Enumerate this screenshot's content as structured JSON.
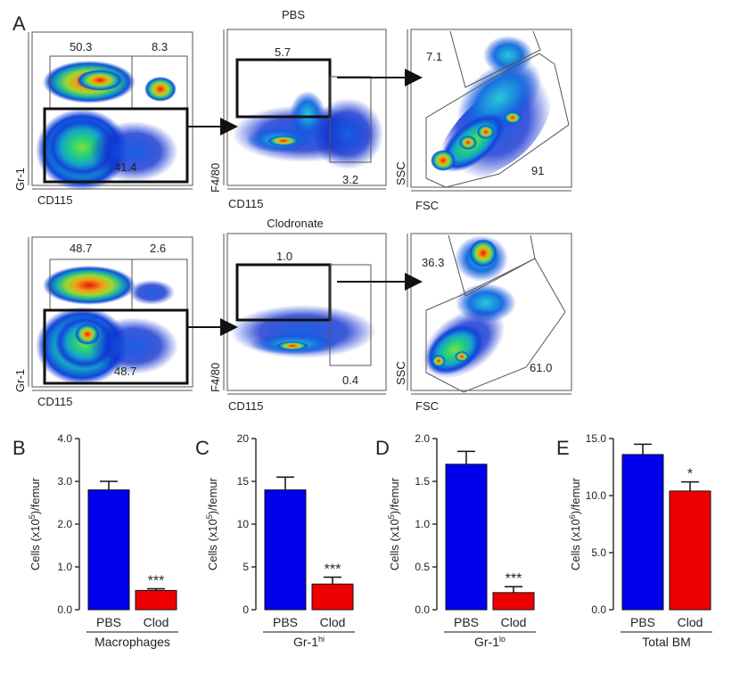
{
  "panel_letters": {
    "a": "A",
    "b": "B",
    "c": "C",
    "d": "D",
    "e": "E"
  },
  "row_titles": [
    "PBS",
    "Clodronate"
  ],
  "colors": {
    "pbs": "#0000ee",
    "clod": "#ee0000",
    "axis": "#333333"
  },
  "flow_plots": [
    {
      "row": 0,
      "xlabel": "CD115",
      "ylabel": "Gr-1",
      "gates": [
        "50.3",
        "8.3",
        "41.4"
      ]
    },
    {
      "row": 0,
      "xlabel": "CD115",
      "ylabel": "F4/80",
      "gates": [
        "5.7",
        "3.2"
      ]
    },
    {
      "row": 0,
      "xlabel": "FSC",
      "ylabel": "SSC",
      "gates": [
        "7.1",
        "91"
      ]
    },
    {
      "row": 1,
      "xlabel": "CD115",
      "ylabel": "Gr-1",
      "gates": [
        "48.7",
        "2.6",
        "48.7"
      ]
    },
    {
      "row": 1,
      "xlabel": "CD115",
      "ylabel": "F4/80",
      "gates": [
        "1.0",
        "0.4"
      ]
    },
    {
      "row": 1,
      "xlabel": "FSC",
      "ylabel": "SSC",
      "gates": [
        "36.3",
        "61.0"
      ]
    }
  ],
  "chart_data": [
    {
      "panel": "B",
      "type": "bar",
      "categories": [
        "PBS",
        "Clod"
      ],
      "values": [
        2.8,
        0.45
      ],
      "errors": [
        0.2,
        0.04
      ],
      "ylabel": "Cells (x10^5)/femur",
      "ylabel_base": "Cells (x10",
      "ylabel_exp": "5",
      "ylabel_tail": ")/femur",
      "ylim": [
        0,
        4.0
      ],
      "yticks": [
        "0.0",
        "1.0",
        "2.0",
        "3.0",
        "4.0"
      ],
      "group_label": "Macrophages",
      "group_sup": "",
      "sig": [
        "",
        "***"
      ]
    },
    {
      "panel": "C",
      "type": "bar",
      "categories": [
        "PBS",
        "Clod"
      ],
      "values": [
        14.0,
        3.0
      ],
      "errors": [
        1.5,
        0.8
      ],
      "ylabel": "Cells (x10^5)/femur",
      "ylabel_base": "Cells (x10",
      "ylabel_exp": "5",
      "ylabel_tail": ")/femur",
      "ylim": [
        0,
        20
      ],
      "yticks": [
        "0",
        "5",
        "10",
        "15",
        "20"
      ],
      "group_label": "Gr-1",
      "group_sup": "hi",
      "sig": [
        "",
        "***"
      ]
    },
    {
      "panel": "D",
      "type": "bar",
      "categories": [
        "PBS",
        "Clod"
      ],
      "values": [
        1.7,
        0.2
      ],
      "errors": [
        0.15,
        0.07
      ],
      "ylabel": "Cells (x10^5)/femur",
      "ylabel_base": "Cells (x10",
      "ylabel_exp": "5",
      "ylabel_tail": ")/femur",
      "ylim": [
        0,
        2.0
      ],
      "yticks": [
        "0.0",
        "0.5",
        "1.0",
        "1.5",
        "2.0"
      ],
      "group_label": "Gr-1",
      "group_sup": "lo",
      "sig": [
        "",
        "***"
      ]
    },
    {
      "panel": "E",
      "type": "bar",
      "categories": [
        "PBS",
        "Clod"
      ],
      "values": [
        13.6,
        10.4
      ],
      "errors": [
        0.9,
        0.8
      ],
      "ylabel": "Cells (x10^6)/femur",
      "ylabel_base": "Cells (x10",
      "ylabel_exp": "6",
      "ylabel_tail": ")/femur",
      "ylim": [
        0,
        15.0
      ],
      "yticks": [
        "0.0",
        "5.0",
        "10.0",
        "15.0"
      ],
      "group_label": "Total BM",
      "group_sup": "",
      "sig": [
        "",
        "*"
      ]
    }
  ]
}
